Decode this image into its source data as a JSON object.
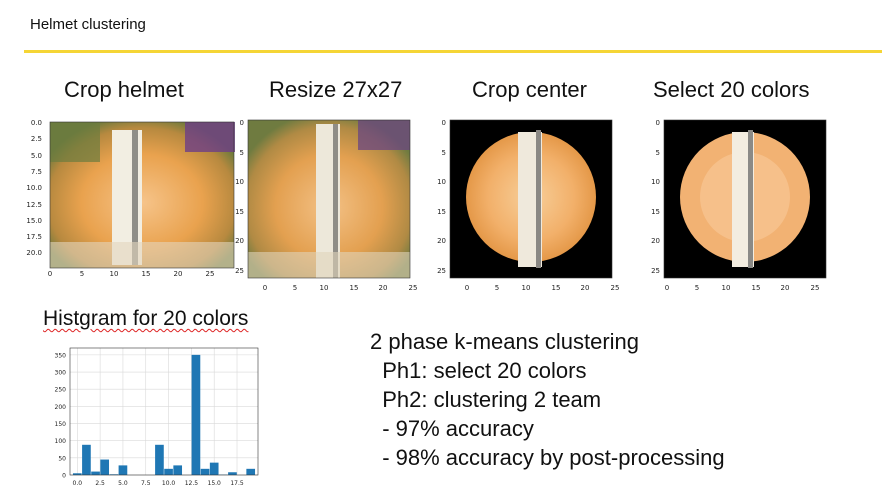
{
  "slide": {
    "title": "Helmet clustering"
  },
  "steps": [
    {
      "label": "Crop helmet",
      "yticks": [
        "0.0",
        "2.5",
        "5.0",
        "7.5",
        "10.0",
        "12.5",
        "15.0",
        "17.5",
        "20.0"
      ],
      "xticks": [
        "0",
        "5",
        "10",
        "15",
        "20",
        "25"
      ]
    },
    {
      "label": "Resize 27x27",
      "yticks": [
        "0",
        "5",
        "10",
        "15",
        "20",
        "25"
      ],
      "xticks": [
        "0",
        "5",
        "10",
        "15",
        "20",
        "25"
      ]
    },
    {
      "label": "Crop center",
      "yticks": [
        "0",
        "5",
        "10",
        "15",
        "20",
        "25"
      ],
      "xticks": [
        "0",
        "5",
        "10",
        "15",
        "20",
        "25"
      ]
    },
    {
      "label": "Select 20 colors",
      "yticks": [
        "0",
        "5",
        "10",
        "15",
        "20",
        "25"
      ],
      "xticks": [
        "0",
        "5",
        "10",
        "15",
        "20",
        "25"
      ]
    }
  ],
  "histogram": {
    "title": "Histgram for 20 colors",
    "chart_data": {
      "type": "bar",
      "x": [
        0,
        1,
        2,
        3,
        4,
        5,
        6,
        7,
        8,
        9,
        10,
        11,
        12,
        13,
        14,
        15,
        16,
        17,
        18,
        19
      ],
      "values": [
        5,
        88,
        10,
        45,
        2,
        28,
        0,
        0,
        0,
        88,
        18,
        28,
        0,
        350,
        18,
        36,
        1,
        8,
        0,
        18
      ],
      "xticks": [
        "0.0",
        "2.5",
        "5.0",
        "7.5",
        "10.0",
        "12.5",
        "15.0",
        "17.5"
      ],
      "yticks": [
        "0",
        "50",
        "100",
        "150",
        "200",
        "250",
        "300",
        "350"
      ],
      "ylim": [
        0,
        370
      ],
      "xlim": [
        -0.8,
        19.8
      ],
      "grid": true,
      "color": "#1f77b4"
    }
  },
  "notes": [
    "2 phase k-means clustering",
    "  Ph1: select 20 colors",
    "  Ph2: clustering 2 team",
    "  - 97% accuracy",
    "  - 98% accuracy by post-processing"
  ],
  "palette": {
    "accent_rule": "#f5d535",
    "bar": "#1f77b4"
  }
}
